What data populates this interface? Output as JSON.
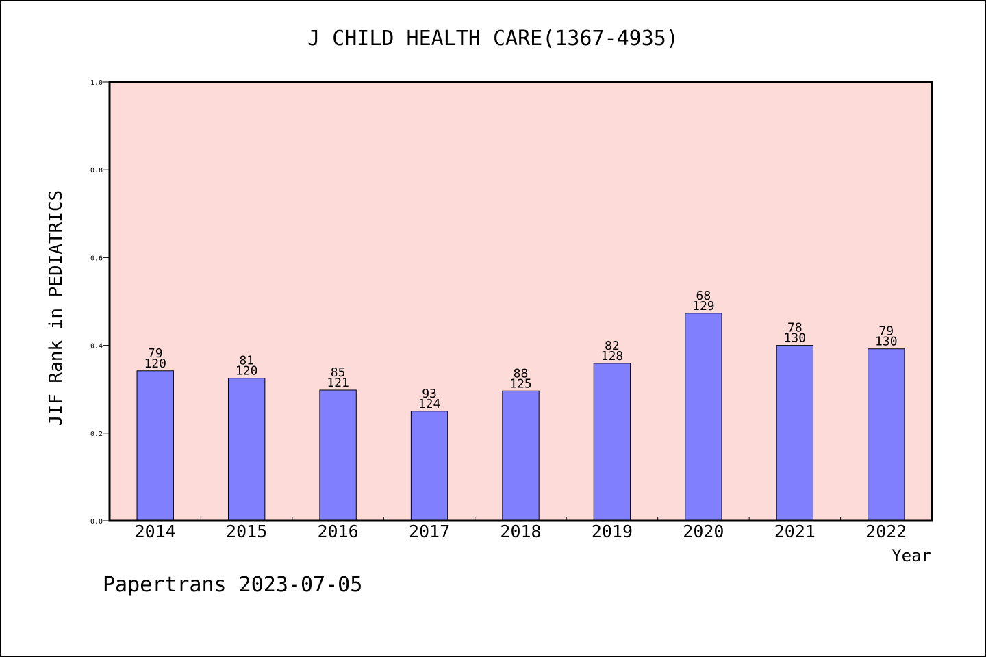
{
  "chart_data": {
    "type": "bar",
    "title": "J CHILD HEALTH CARE(1367-4935)",
    "xlabel": "Year",
    "ylabel": "JIF Rank in PEDIATRICS",
    "categories": [
      "2014",
      "2015",
      "2016",
      "2017",
      "2018",
      "2019",
      "2020",
      "2021",
      "2022"
    ],
    "values": [
      0.342,
      0.325,
      0.298,
      0.25,
      0.296,
      0.359,
      0.473,
      0.4,
      0.392
    ],
    "bar_labels": [
      [
        "79",
        "120"
      ],
      [
        "81",
        "120"
      ],
      [
        "85",
        "121"
      ],
      [
        "93",
        "124"
      ],
      [
        "88",
        "125"
      ],
      [
        "82",
        "128"
      ],
      [
        "68",
        "129"
      ],
      [
        "78",
        "130"
      ],
      [
        "79",
        "130"
      ]
    ],
    "ylim": [
      0,
      1.0
    ],
    "yticks": [
      "0.0",
      "0.2",
      "0.4",
      "0.6",
      "0.8",
      "1.0"
    ],
    "grid": false,
    "colors": {
      "plot_bg": "#fddbd8",
      "bar": "#8080ff"
    }
  },
  "footer": {
    "text": "Papertrans 2023-07-05"
  }
}
